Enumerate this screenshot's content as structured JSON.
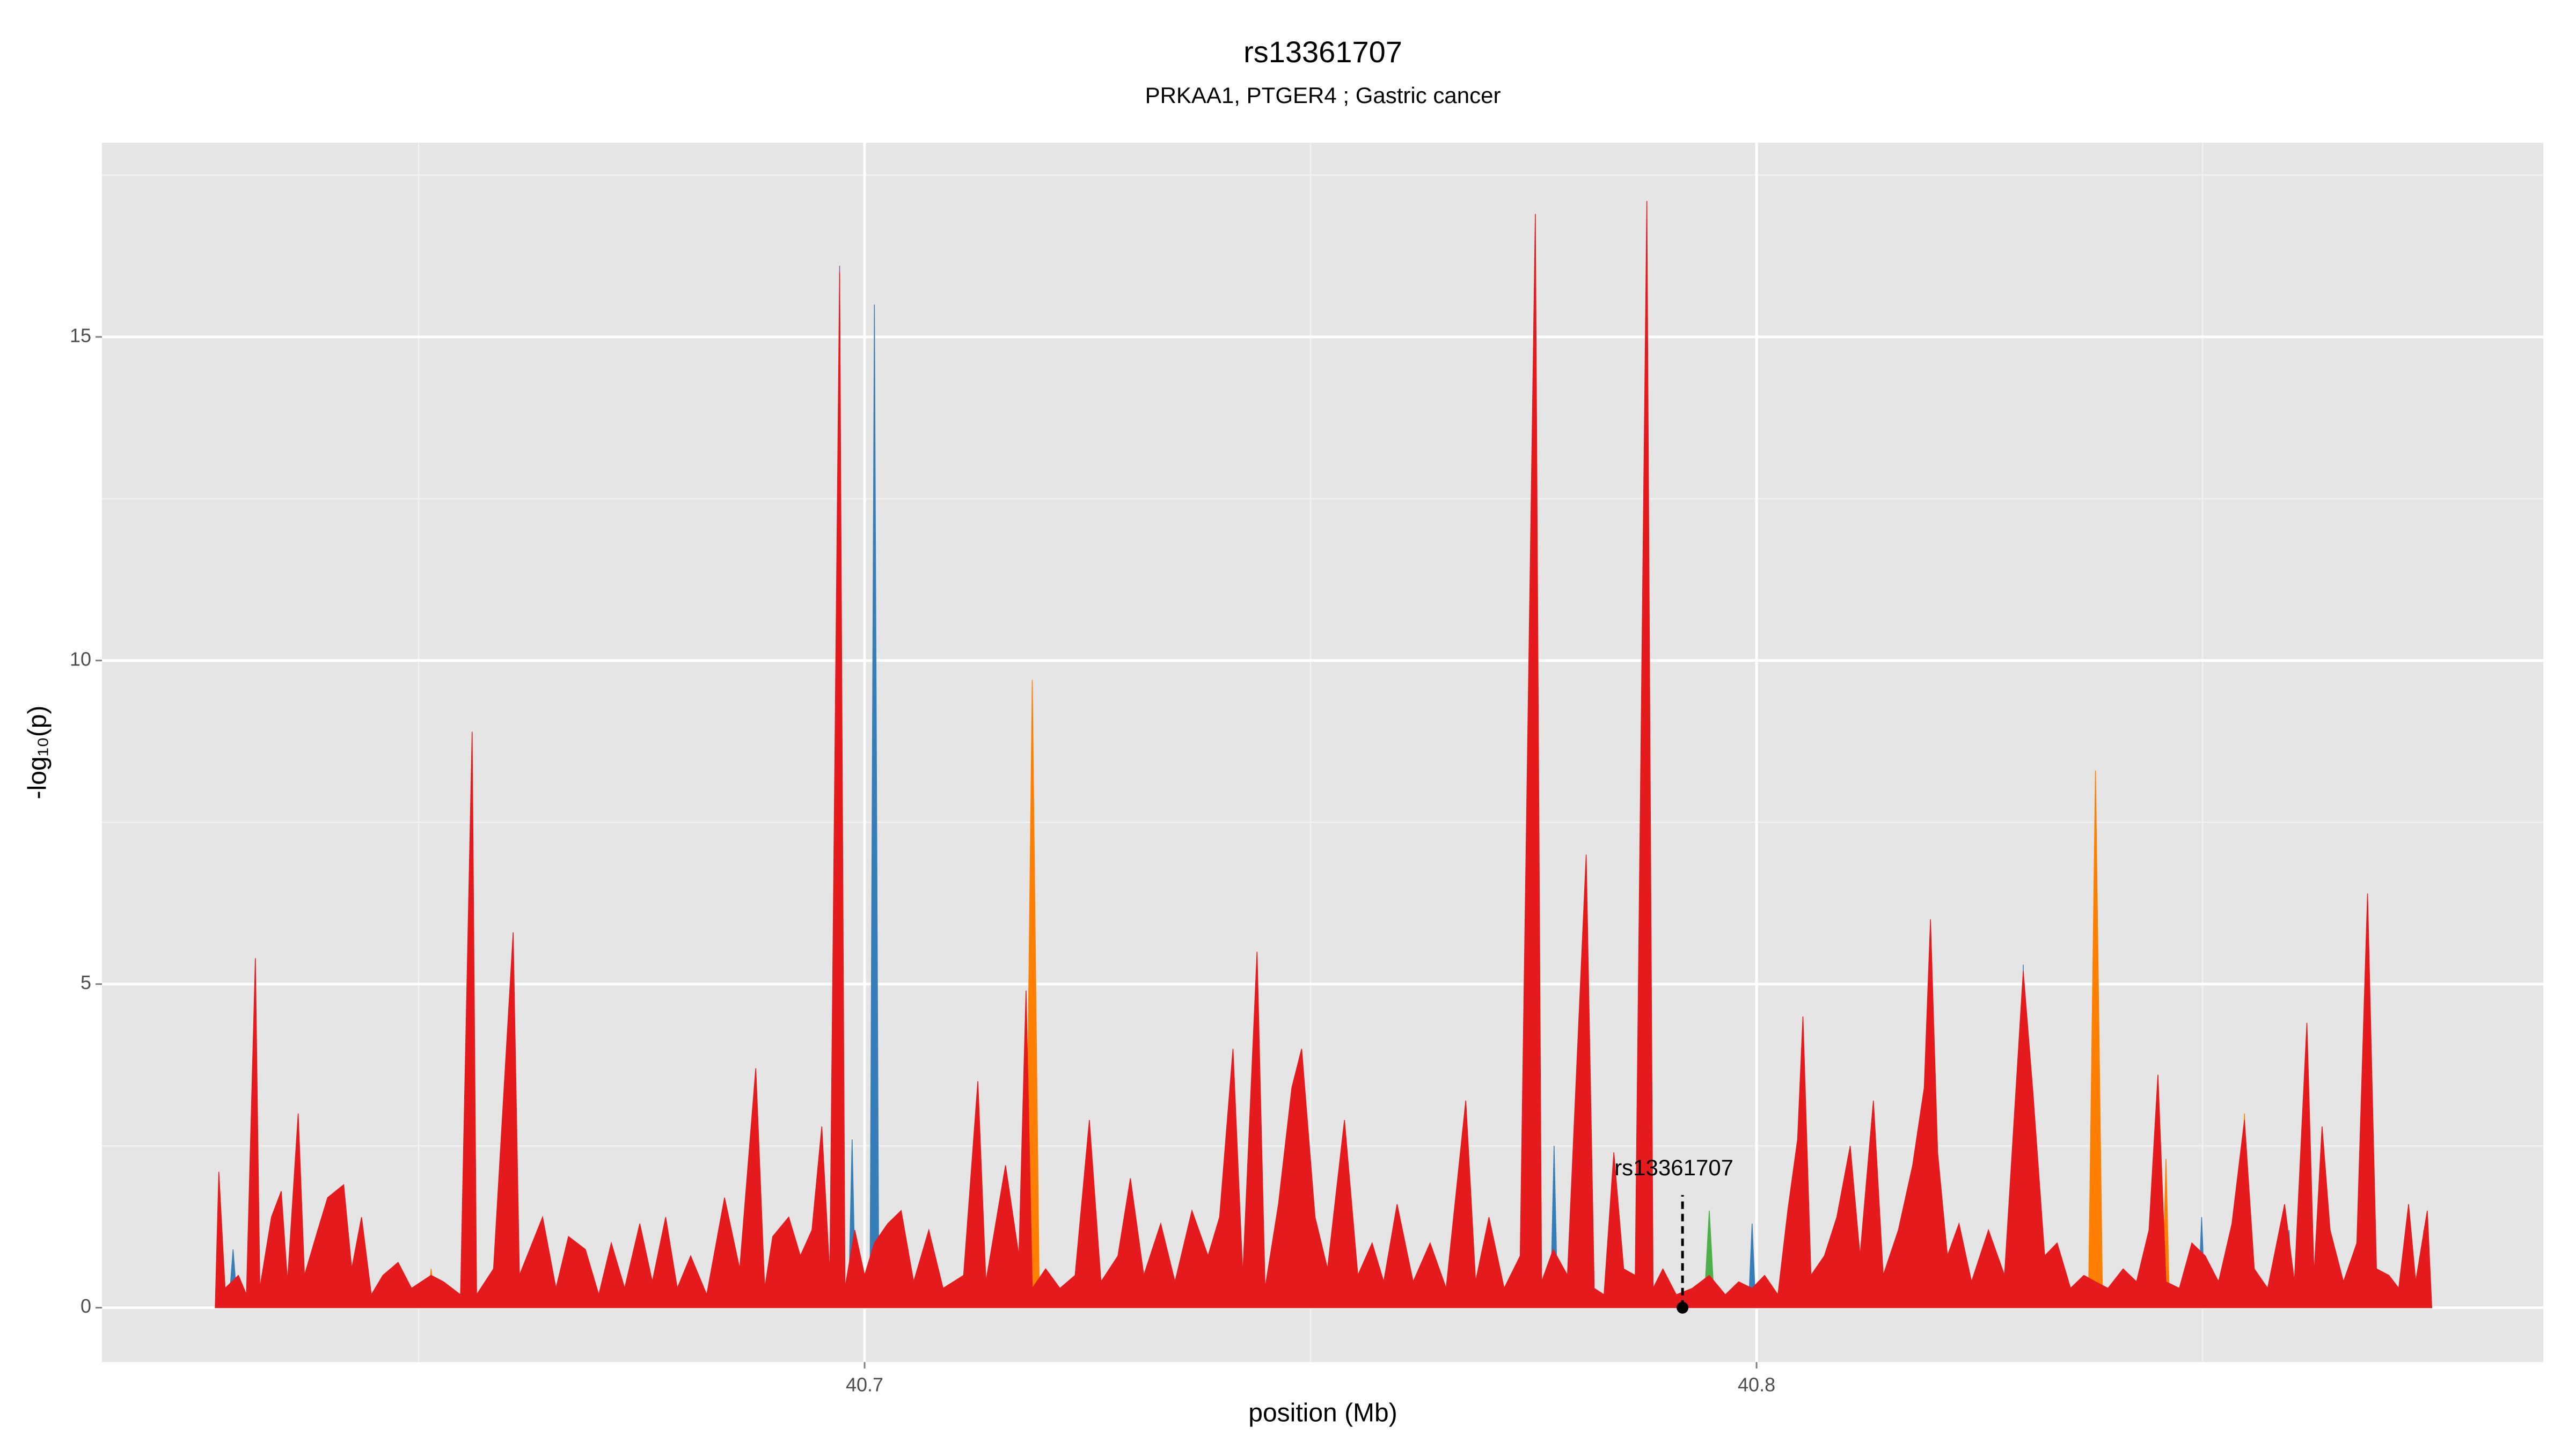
{
  "chart_data": {
    "type": "area",
    "title": "rs13361707",
    "subtitle": "PRKAA1, PTGER4 ; Gastric cancer",
    "x_label": "position (Mb)",
    "y_label": "-log₁₀(p)",
    "xlim": [
      40.6145,
      40.8882
    ],
    "xticks": [
      40.7,
      40.8
    ],
    "ylim": [
      -0.84,
      18.0
    ],
    "yticks": [
      0,
      5,
      10,
      15
    ],
    "x_minor_grid": [
      40.65,
      40.75,
      40.85
    ],
    "y_minor_grid": [
      2.5,
      7.5,
      12.5,
      17.5
    ],
    "grid": true,
    "series": [
      {
        "color": "#ff7f00",
        "x": [
          40.6272,
          40.651,
          40.6514,
          40.6518,
          40.6602,
          40.6606,
          40.661,
          40.718,
          40.7188,
          40.7196,
          40.8085,
          40.809,
          40.8095,
          40.8372,
          40.838,
          40.8388,
          40.8455,
          40.8459,
          40.8463,
          40.854,
          40.8547,
          40.8554,
          40.8757
        ],
        "values": [
          0,
          0,
          0.6,
          0,
          0,
          5.6,
          0,
          0,
          9.7,
          0,
          0,
          1.3,
          0,
          0,
          8.3,
          0,
          0,
          2.3,
          0,
          0,
          3.0,
          0,
          0
        ]
      },
      {
        "color": "#377eb8",
        "x": [
          40.6272,
          40.6287,
          40.6292,
          40.6297,
          40.6982,
          40.6986,
          40.699,
          40.7006,
          40.7011,
          40.7016,
          40.7769,
          40.7773,
          40.7777,
          40.7991,
          40.7995,
          40.7999,
          40.8295,
          40.8299,
          40.8303,
          40.8495,
          40.8499,
          40.8503,
          40.8593,
          40.8597,
          40.8601,
          40.8744,
          40.8748,
          40.8752,
          40.8757
        ],
        "values": [
          0,
          0,
          0.9,
          0,
          0,
          2.6,
          0,
          0,
          15.5,
          0,
          0,
          2.5,
          0,
          0,
          1.3,
          0,
          0,
          5.3,
          0,
          0,
          1.4,
          0,
          0,
          1.2,
          0,
          0,
          1.2,
          0,
          0
        ]
      },
      {
        "color": "#984ea3",
        "x": [
          40.6967,
          40.6972,
          40.6977
        ],
        "values": [
          0,
          16.1,
          0
        ]
      },
      {
        "color": "#4daf4a",
        "x": [
          40.7941,
          40.7947,
          40.7953
        ],
        "values": [
          0,
          1.5,
          0
        ]
      },
      {
        "color": "#e41a1c",
        "x": [
          40.6272,
          40.6276,
          40.6283,
          40.6298,
          40.6307,
          40.6317,
          40.6322,
          40.6335,
          40.6346,
          40.6353,
          40.6365,
          40.6372,
          40.6387,
          40.6398,
          40.6416,
          40.6425,
          40.6436,
          40.6447,
          40.646,
          40.6477,
          40.6492,
          40.6514,
          40.6528,
          40.6547,
          40.656,
          40.6565,
          40.6584,
          40.6606,
          40.6613,
          40.6639,
          40.6654,
          40.6668,
          40.6687,
          40.6702,
          40.6716,
          40.6731,
          40.6748,
          40.6762,
          40.6777,
          40.679,
          40.6805,
          40.6823,
          40.6843,
          40.686,
          40.6878,
          40.6888,
          40.6897,
          40.6915,
          40.6928,
          40.6941,
          40.6952,
          40.6961,
          40.6972,
          40.6978,
          40.6989,
          40.7,
          40.7011,
          40.7026,
          40.7041,
          40.7055,
          40.7072,
          40.7088,
          40.7111,
          40.7127,
          40.7136,
          40.7158,
          40.7173,
          40.7181,
          40.7188,
          40.7203,
          40.7219,
          40.7236,
          40.7252,
          40.7265,
          40.7284,
          40.7298,
          40.7313,
          40.7332,
          40.7348,
          40.7367,
          40.7385,
          40.7398,
          40.7413,
          40.7424,
          40.744,
          40.7449,
          40.7464,
          40.7479,
          40.749,
          40.7505,
          40.7519,
          40.7538,
          40.7553,
          40.7569,
          40.7582,
          40.7597,
          40.7615,
          40.7634,
          40.7652,
          40.7674,
          40.7685,
          40.77,
          40.7717,
          40.7735,
          40.7752,
          40.7759,
          40.7772,
          40.7788,
          40.7809,
          40.7818,
          40.7829,
          40.784,
          40.7851,
          40.7864,
          40.7877,
          40.7884,
          40.7895,
          40.791,
          40.7928,
          40.7947,
          40.7965,
          40.798,
          40.7995,
          40.8009,
          40.8024,
          40.8035,
          40.8046,
          40.8052,
          40.8061,
          40.8076,
          40.809,
          40.8105,
          40.8116,
          40.8131,
          40.8142,
          40.8159,
          40.8175,
          40.8188,
          40.8195,
          40.8203,
          40.8214,
          40.8227,
          40.8241,
          40.826,
          40.8278,
          40.8299,
          40.831,
          40.8323,
          40.8337,
          40.8352,
          40.8367,
          40.838,
          40.8394,
          40.8411,
          40.8426,
          40.844,
          40.845,
          40.8459,
          40.8474,
          40.8488,
          40.8503,
          40.8518,
          40.8533,
          40.8547,
          40.8558,
          40.8573,
          40.8592,
          40.8603,
          40.8617,
          40.8625,
          40.8634,
          40.8643,
          40.8658,
          40.8673,
          40.8685,
          40.8695,
          40.8709,
          40.872,
          40.8731,
          40.8739,
          40.8752,
          40.8757
        ],
        "values": [
          0,
          2.1,
          0.3,
          0.5,
          0.2,
          5.4,
          0.3,
          1.4,
          1.8,
          0.4,
          3.0,
          0.5,
          1.2,
          1.7,
          1.9,
          0.6,
          1.4,
          0.2,
          0.5,
          0.7,
          0.3,
          0.5,
          0.4,
          0.2,
          8.9,
          0.2,
          0.6,
          5.8,
          0.5,
          1.4,
          0.3,
          1.1,
          0.9,
          0.2,
          1.0,
          0.3,
          1.3,
          0.4,
          1.4,
          0.3,
          0.8,
          0.2,
          1.7,
          0.6,
          3.7,
          0.3,
          1.1,
          1.4,
          0.8,
          1.2,
          2.8,
          0.5,
          16.0,
          0.3,
          1.2,
          0.5,
          1.0,
          1.3,
          1.5,
          0.4,
          1.2,
          0.3,
          0.5,
          3.5,
          0.4,
          2.2,
          0.8,
          4.9,
          0.3,
          0.6,
          0.3,
          0.5,
          2.9,
          0.4,
          0.8,
          2.0,
          0.5,
          1.3,
          0.4,
          1.5,
          0.8,
          1.4,
          4.0,
          0.5,
          5.5,
          0.3,
          1.6,
          3.4,
          4.0,
          1.4,
          0.6,
          2.9,
          0.5,
          1.0,
          0.4,
          1.6,
          0.4,
          1.0,
          0.3,
          3.2,
          0.4,
          1.4,
          0.3,
          0.8,
          16.9,
          0.4,
          0.9,
          0.5,
          7.0,
          0.3,
          0.2,
          2.4,
          0.6,
          0.5,
          17.1,
          0.3,
          0.6,
          0.2,
          0.3,
          0.5,
          0.2,
          0.4,
          0.3,
          0.5,
          0.2,
          1.5,
          2.6,
          4.5,
          0.5,
          0.8,
          1.4,
          2.5,
          0.8,
          3.2,
          0.5,
          1.2,
          2.2,
          3.4,
          6.0,
          2.4,
          0.8,
          1.3,
          0.4,
          1.2,
          0.5,
          5.2,
          3.3,
          0.8,
          1.0,
          0.3,
          0.5,
          0.4,
          0.3,
          0.6,
          0.4,
          1.2,
          3.6,
          0.4,
          0.3,
          1.0,
          0.8,
          0.4,
          1.3,
          2.9,
          0.6,
          0.3,
          1.6,
          0.4,
          4.4,
          0.5,
          2.8,
          1.2,
          0.4,
          1.0,
          6.4,
          0.6,
          0.5,
          0.3,
          1.6,
          0.4,
          1.5,
          0
        ]
      }
    ],
    "annotations": [
      {
        "text": "rs13361707",
        "x": 40.7917,
        "y": 0
      }
    ]
  }
}
